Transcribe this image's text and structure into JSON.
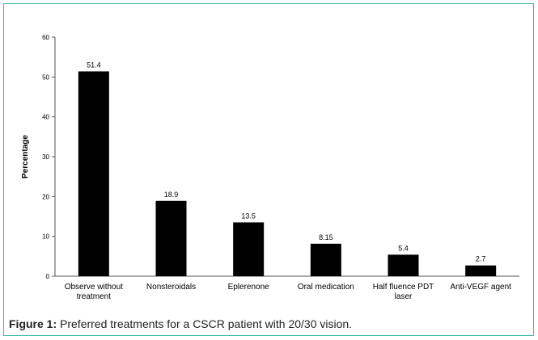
{
  "chart_data": {
    "type": "bar",
    "title": "",
    "xlabel": "",
    "ylabel": "Percentage",
    "ylim": [
      0,
      60
    ],
    "yticks": [
      0,
      10,
      20,
      30,
      40,
      50,
      60
    ],
    "grid": false,
    "categories": [
      "Observe without treatment",
      "Nonsteroidals",
      "Eplerenone",
      "Oral medication",
      "Half fluence PDT laser",
      "Anti-VEGF agent"
    ],
    "values": [
      51.4,
      18.9,
      13.5,
      8.15,
      5.4,
      2.7
    ],
    "value_labels": [
      "51.4",
      "18.9",
      "13.5",
      "8.15",
      "5.4",
      "2.7"
    ],
    "bar_color": "#000000"
  },
  "caption": {
    "label": "Figure 1:",
    "text": " Preferred treatments for a CSCR patient with 20/30 vision."
  }
}
